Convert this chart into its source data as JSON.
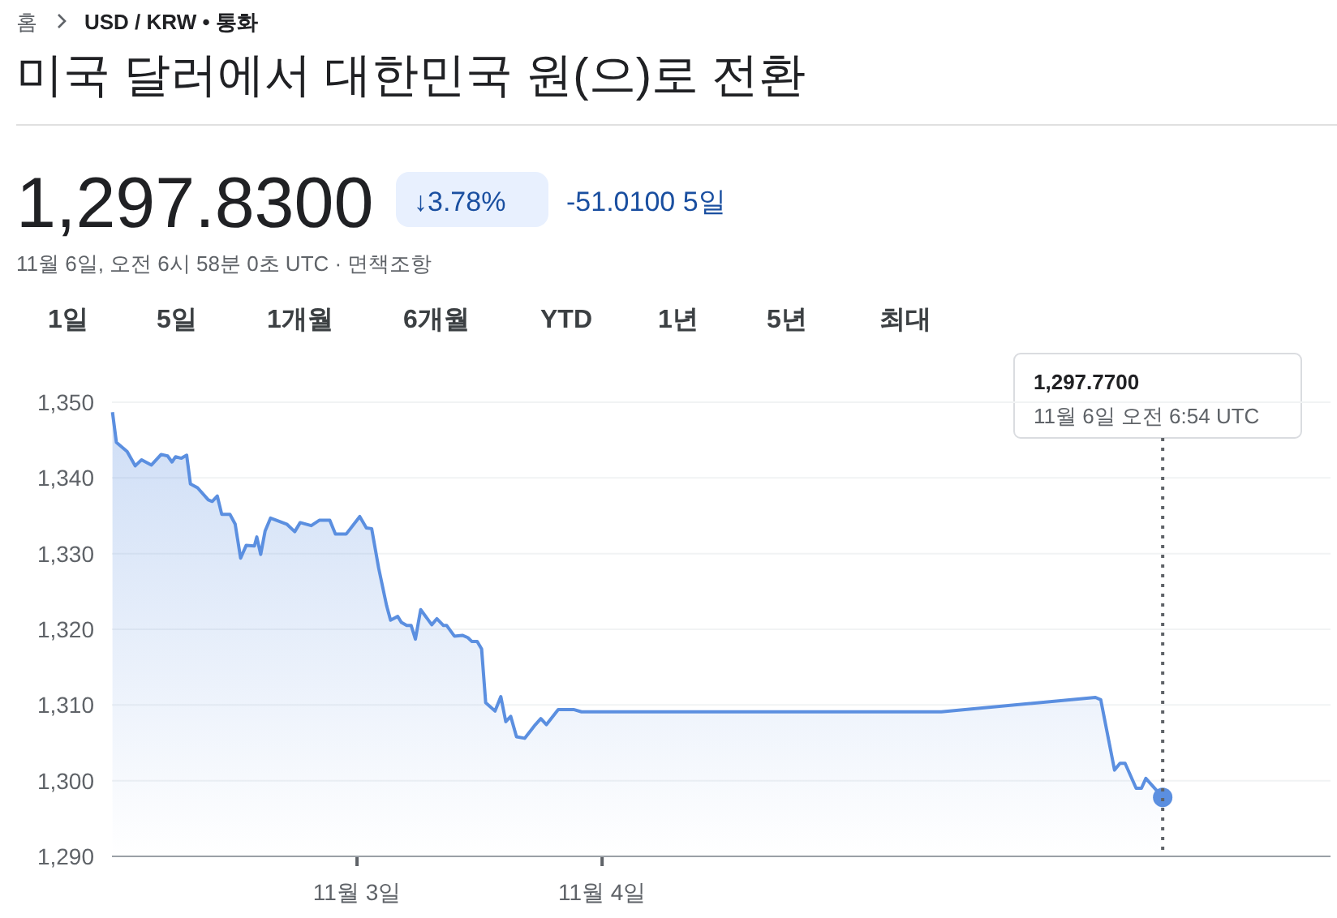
{
  "chart_data": {
    "type": "area",
    "title": "미국 달러에서 대한민국 원(으)로 전환",
    "annotations": [
      "홈",
      "USD / KRW • 통화",
      "1,297.8300",
      "↓3.78%",
      "-51.0100 5일",
      "11월 6일, 오전 6시 58분 0초 UTC · 면책조항",
      "1일",
      "5일",
      "1개월",
      "6개월",
      "YTD",
      "1년",
      "5년",
      "최대",
      "1,297.7700",
      "11월 6일 오전 6:54 UTC"
    ],
    "series": [
      {
        "color": "#5b8fe0",
        "x": [
          "--11-02T00:03",
          "--11-02T00:26",
          "--11-02T01:29",
          "--11-02T02:17",
          "--11-02T02:54",
          "--11-02T03:52",
          "--11-02T04:49",
          "--11-02T05:27",
          "--11-02T05:53",
          "--11-02T06:14",
          "--11-02T06:48",
          "--11-02T07:19",
          "--11-02T07:41",
          "--11-02T08:23",
          "--11-02T09:26",
          "--11-02T09:49",
          "--11-02T10:19",
          "--11-02T10:45",
          "--11-02T11:33",
          "--11-02T12:04",
          "--11-02T12:36",
          "--11-02T13:09",
          "--11-02T13:57",
          "--11-02T14:11",
          "--11-02T14:34",
          "--11-02T15:00",
          "--11-02T15:32",
          "--11-02T17:07",
          "--11-02T17:54",
          "--11-02T18:26",
          "--11-02T19:31",
          "--11-02T20:18",
          "--11-02T21:20",
          "--11-02T21:53",
          "--11-02T22:57",
          "--11-03T00:16",
          "--11-03T00:55",
          "--11-03T01:26",
          "--11-03T02:07",
          "--11-03T02:54",
          "--11-03T03:17",
          "--11-03T03:59",
          "--11-03T04:21",
          "--11-03T04:52",
          "--11-03T05:18",
          "--11-03T05:43",
          "--11-03T06:14",
          "--11-03T06:53",
          "--11-03T07:19",
          "--11-03T07:49",
          "--11-03T08:28",
          "--11-03T08:47",
          "--11-03T09:32",
          "--11-03T10:19",
          "--11-03T10:51",
          "--11-03T11:14",
          "--11-03T11:46",
          "--11-03T12:12",
          "--11-03T12:36",
          "--11-03T13:31",
          "--11-03T14:05",
          "--11-03T14:34",
          "--11-03T15:03",
          "--11-03T15:37",
          "--11-03T16:25",
          "--11-03T17:28",
          "--11-03T18:00",
          "--11-03T18:33",
          "--11-03T19:42",
          "--11-03T21:12",
          "--11-03T21:59",
          "--11-05T09:13",
          "--11-06T00:19",
          "--11-06T00:50",
          "--11-06T02:11",
          "--11-06T02:43",
          "--11-06T03:13",
          "--11-06T04:18",
          "--11-06T04:49",
          "--11-06T05:15",
          "--11-06T06:54"
        ],
        "values": [
          1348.7,
          1344.7,
          1343.5,
          1341.6,
          1342.4,
          1341.7,
          1343.1,
          1342.9,
          1342.1,
          1342.8,
          1342.6,
          1343.0,
          1339.2,
          1338.7,
          1337.1,
          1336.9,
          1337.6,
          1335.2,
          1335.2,
          1333.9,
          1329.4,
          1331.1,
          1331.0,
          1332.2,
          1329.9,
          1333.0,
          1334.7,
          1333.9,
          1332.9,
          1334.1,
          1333.7,
          1334.4,
          1334.4,
          1332.6,
          1332.6,
          1334.9,
          1333.4,
          1333.3,
          1328.1,
          1323.1,
          1321.2,
          1321.7,
          1320.9,
          1320.5,
          1320.5,
          1318.7,
          1322.6,
          1321.4,
          1320.6,
          1321.4,
          1320.5,
          1320.5,
          1319.1,
          1319.2,
          1318.9,
          1318.4,
          1318.4,
          1317.4,
          1310.3,
          1309.2,
          1311.1,
          1307.8,
          1308.5,
          1305.8,
          1305.6,
          1307.4,
          1308.2,
          1307.4,
          1309.4,
          1309.4,
          1309.1,
          1309.1,
          1311.0,
          1310.7,
          1301.4,
          1302.3,
          1302.3,
          1299.0,
          1299.0,
          1300.3,
          1297.8
        ]
      },
      {
        "type": "scatter",
        "color": "#5b8fe0",
        "marker": "circle",
        "x": [
          "--11-06T06:54"
        ],
        "values": [
          1297.8
        ]
      }
    ],
    "xlim": [
      "--11-02T00:00",
      "--11-06T23:20"
    ],
    "xticks": [
      {
        "value": "--11-03",
        "label": "11월 3일"
      },
      {
        "value": "--11-04",
        "label": "11월 4일"
      }
    ],
    "ylim": [
      1290,
      1350
    ],
    "yticks": [
      {
        "value": 1290,
        "label": "1,290"
      },
      {
        "value": 1300,
        "label": "1,300"
      },
      {
        "value": 1310,
        "label": "1,310"
      },
      {
        "value": 1320,
        "label": "1,320"
      },
      {
        "value": 1330,
        "label": "1,330"
      },
      {
        "value": 1340,
        "label": "1,340"
      },
      {
        "value": 1350,
        "label": "1,350"
      }
    ],
    "ref_lines": [
      {
        "axis": "x",
        "value": "--11-06T06:54",
        "line_style": "dotted",
        "color": "#5f6368"
      }
    ],
    "grid": "y"
  }
}
